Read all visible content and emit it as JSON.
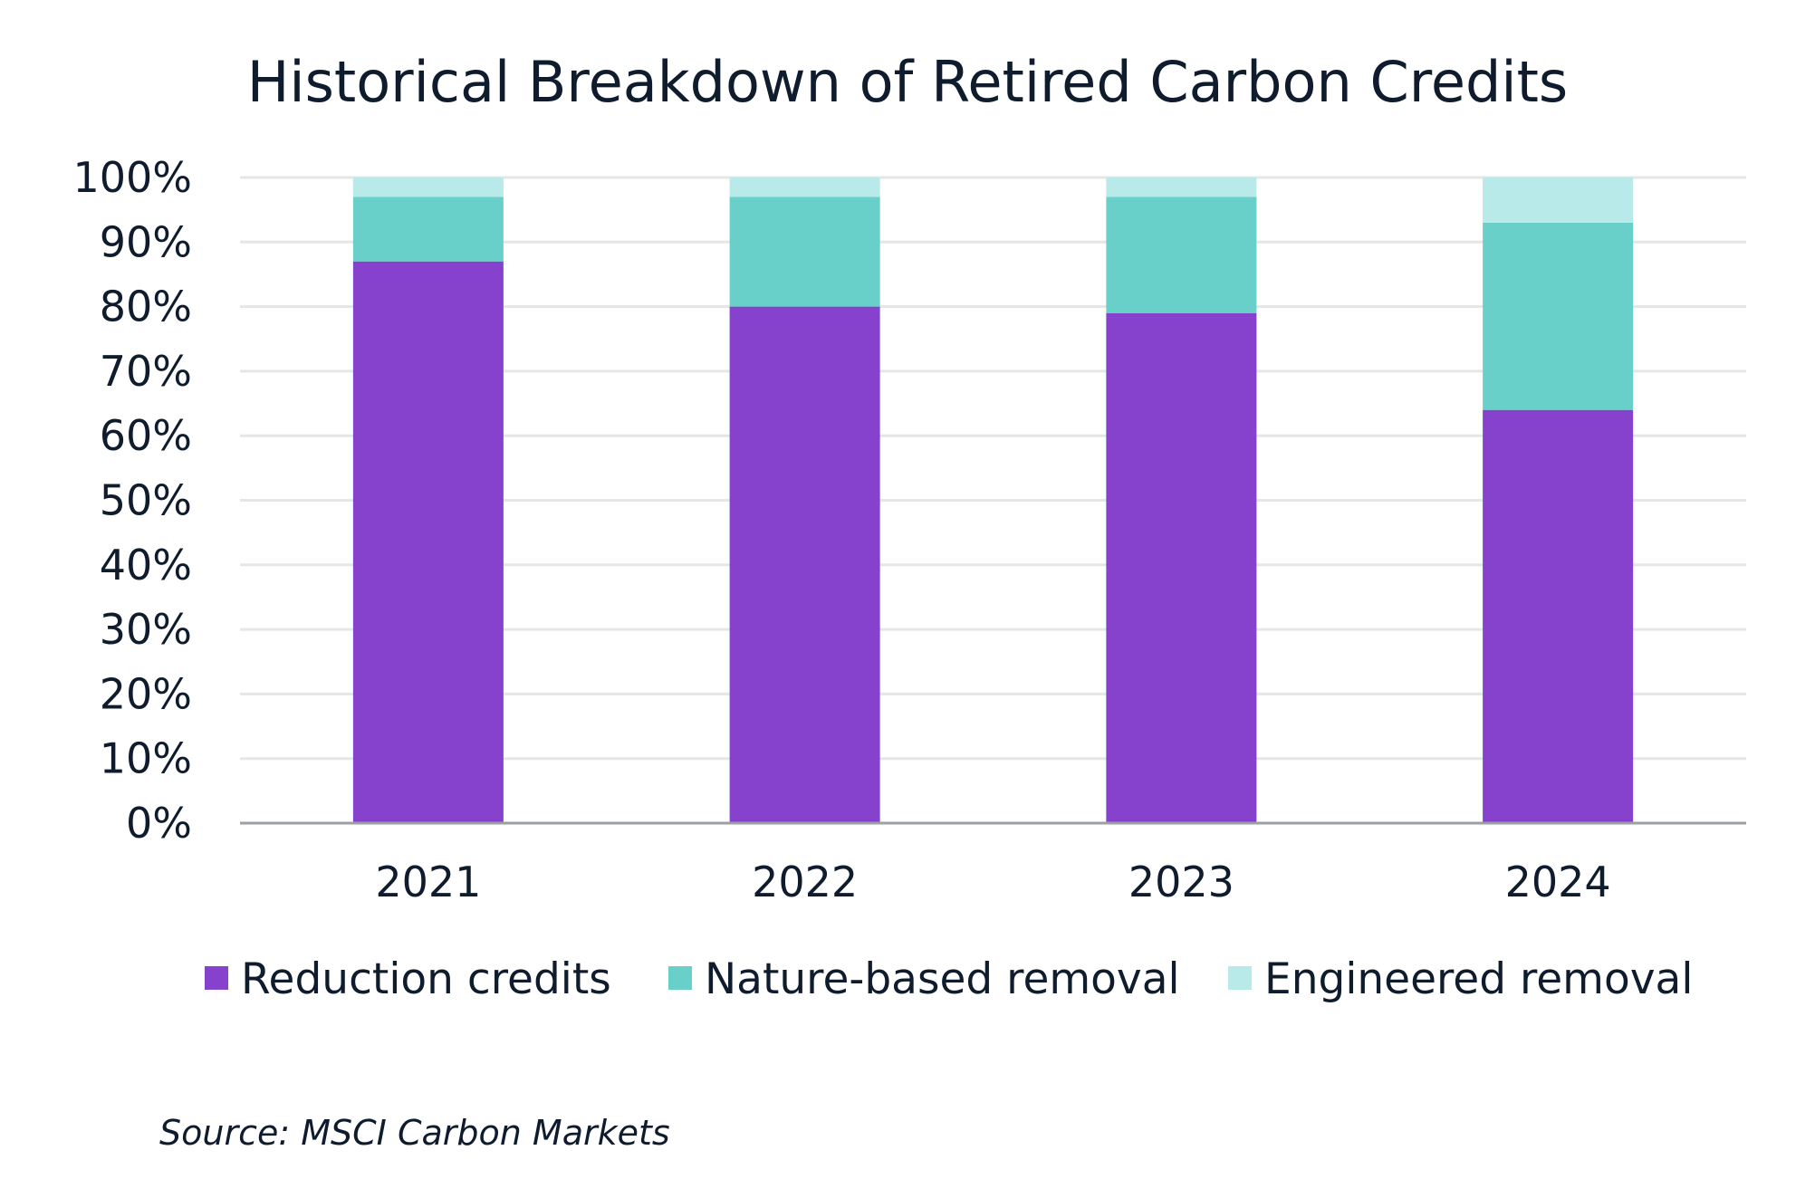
{
  "chart_data": {
    "type": "bar",
    "stacked": true,
    "title": "Historical Breakdown of Retired Carbon Credits",
    "xlabel": "",
    "ylabel": "",
    "ylim": [
      0,
      100
    ],
    "y_ticks": [
      "0%",
      "10%",
      "20%",
      "30%",
      "40%",
      "50%",
      "60%",
      "70%",
      "80%",
      "90%",
      "100%"
    ],
    "categories": [
      "2021",
      "2022",
      "2023",
      "2024"
    ],
    "series": [
      {
        "name": "Reduction credits",
        "color": "#8642cc",
        "values": [
          87,
          80,
          79,
          64
        ]
      },
      {
        "name": "Nature-based removal",
        "color": "#68d0c8",
        "values": [
          10,
          17,
          18,
          29
        ]
      },
      {
        "name": "Engineered removal",
        "color": "#b8eaea",
        "values": [
          3,
          3,
          3,
          7
        ]
      }
    ],
    "grid": true,
    "legend_position": "bottom",
    "source": "Source: MSCI Carbon Markets"
  }
}
